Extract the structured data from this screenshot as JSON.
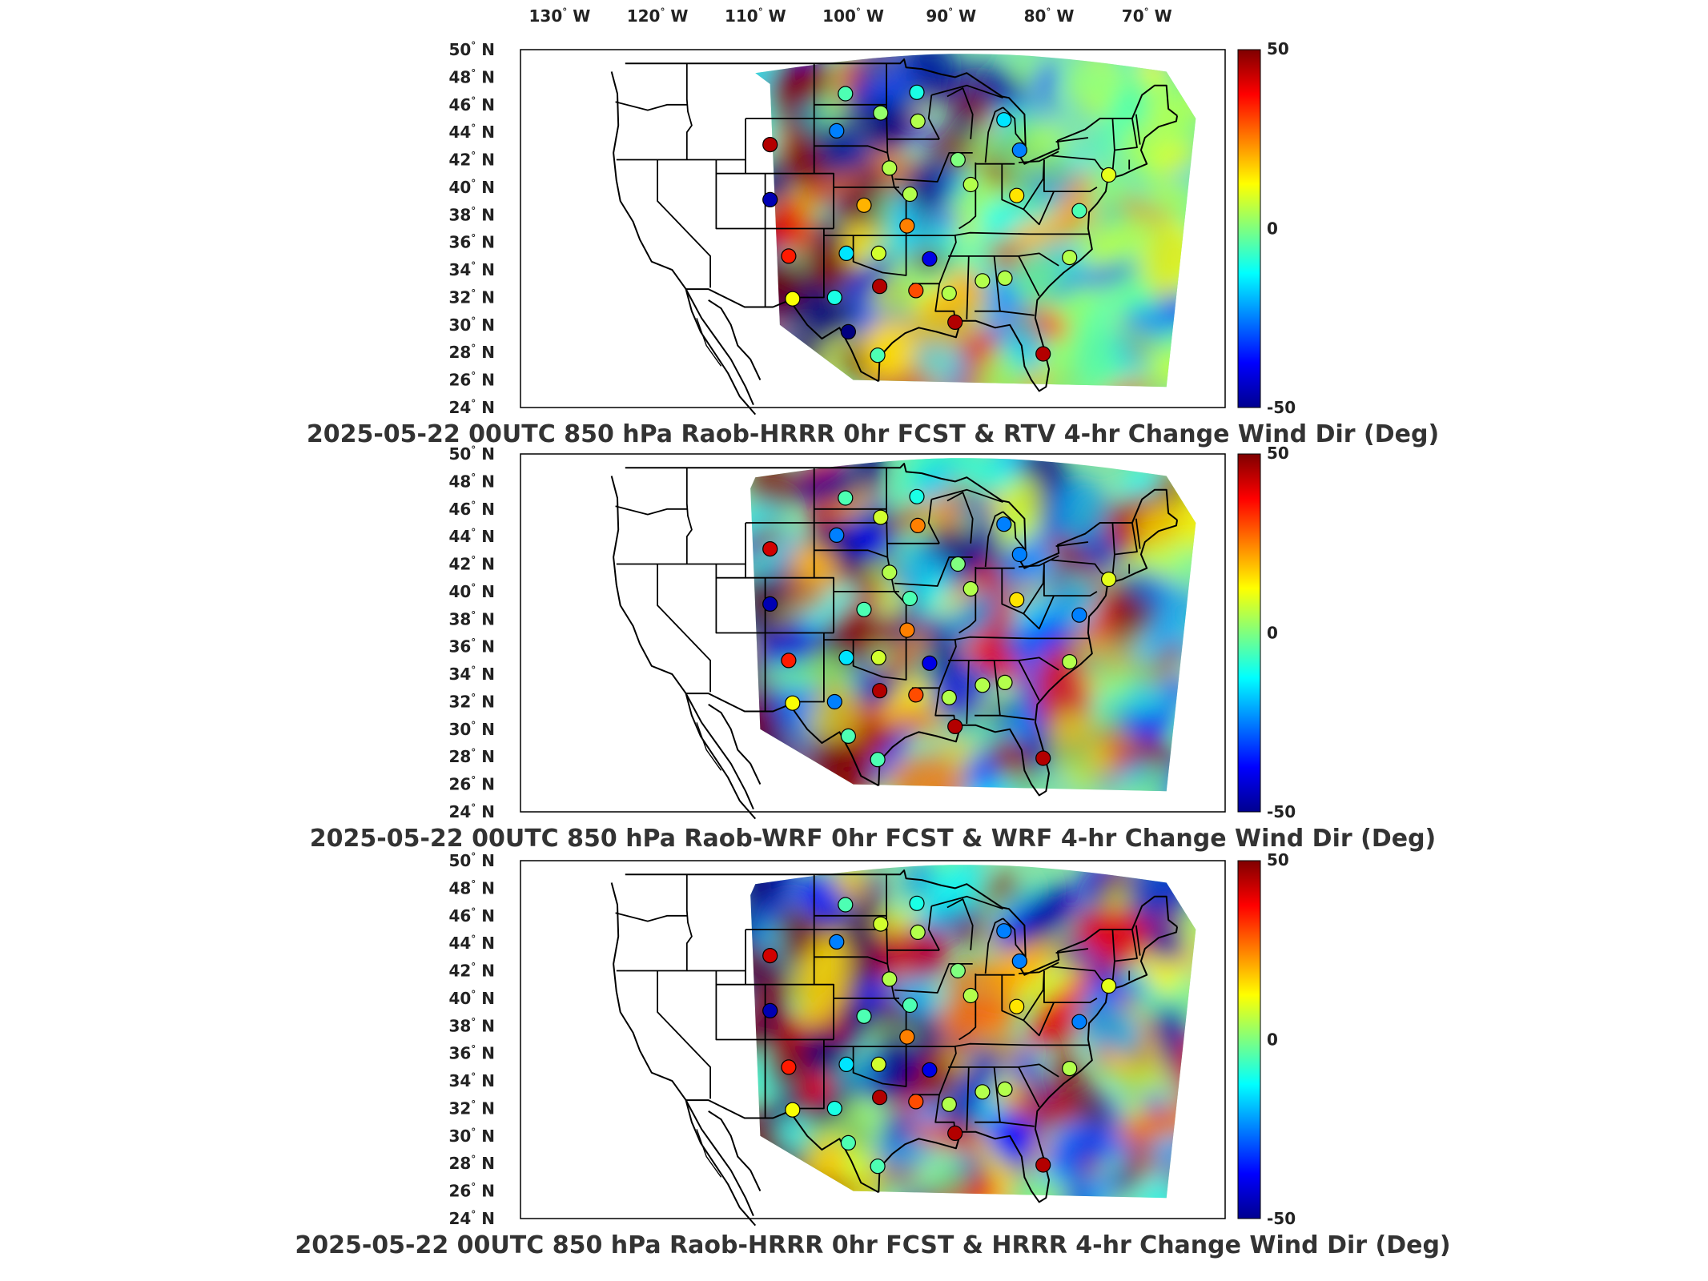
{
  "lon_ticks": [
    "130",
    "120",
    "110",
    "100",
    "90",
    "80",
    "70"
  ],
  "lon_suffix": "W",
  "lat_ticks": [
    "50",
    "48",
    "46",
    "44",
    "42",
    "40",
    "38",
    "36",
    "34",
    "32",
    "30",
    "28",
    "26",
    "24"
  ],
  "lat_suffix": "N",
  "colorbar": {
    "max_label": "50",
    "mid_label": "0",
    "min_label": "-50",
    "colormap": "jet"
  },
  "panels": [
    {
      "title": "2025-05-22 00UTC 850 hPa Raob-HRRR 0hr FCST & RTV 4-hr Change Wind Dir (Deg)"
    },
    {
      "title": "2025-05-22 00UTC 850 hPa Raob-WRF 0hr FCST & WRF 4-hr Change Wind Dir (Deg)"
    },
    {
      "title": "2025-05-22 00UTC 850 hPa Raob-HRRR 0hr FCST & HRRR 4-hr Change Wind Dir (Deg)"
    }
  ],
  "stations": [
    {
      "lon": -108.5,
      "lat": 43.1,
      "v": [
        45,
        42,
        42
      ]
    },
    {
      "lon": -108.5,
      "lat": 39.1,
      "v": [
        -45,
        -45,
        -45
      ]
    },
    {
      "lon": -106.6,
      "lat": 35.0,
      "v": [
        35,
        35,
        35
      ]
    },
    {
      "lon": -106.2,
      "lat": 31.9,
      "v": [
        12,
        12,
        12
      ]
    },
    {
      "lon": -100.8,
      "lat": 46.8,
      "v": [
        -5,
        -5,
        -5
      ]
    },
    {
      "lon": -101.7,
      "lat": 44.1,
      "v": [
        -25,
        -25,
        -25
      ]
    },
    {
      "lon": -97.2,
      "lat": 45.4,
      "v": [
        2,
        8,
        8
      ]
    },
    {
      "lon": -98.9,
      "lat": 38.7,
      "v": [
        20,
        -5,
        -5
      ]
    },
    {
      "lon": -100.7,
      "lat": 35.2,
      "v": [
        -15,
        -15,
        -15
      ]
    },
    {
      "lon": -97.4,
      "lat": 35.2,
      "v": [
        8,
        8,
        8
      ]
    },
    {
      "lon": -101.9,
      "lat": 32.0,
      "v": [
        -10,
        -25,
        -10
      ]
    },
    {
      "lon": -97.3,
      "lat": 32.8,
      "v": [
        45,
        45,
        45
      ]
    },
    {
      "lon": -100.5,
      "lat": 29.5,
      "v": [
        -50,
        -5,
        -5
      ]
    },
    {
      "lon": -97.5,
      "lat": 27.8,
      "v": [
        -5,
        -5,
        -5
      ]
    },
    {
      "lon": -93.5,
      "lat": 46.9,
      "v": [
        -10,
        -10,
        -10
      ]
    },
    {
      "lon": -93.4,
      "lat": 44.8,
      "v": [
        5,
        25,
        5
      ]
    },
    {
      "lon": -96.3,
      "lat": 41.4,
      "v": [
        5,
        5,
        5
      ]
    },
    {
      "lon": -94.2,
      "lat": 39.5,
      "v": [
        5,
        -5,
        -5
      ]
    },
    {
      "lon": -94.5,
      "lat": 37.2,
      "v": [
        25,
        25,
        25
      ]
    },
    {
      "lon": -93.6,
      "lat": 32.5,
      "v": [
        30,
        30,
        30
      ]
    },
    {
      "lon": -92.2,
      "lat": 34.8,
      "v": [
        -40,
        -40,
        -40
      ]
    },
    {
      "lon": -89.3,
      "lat": 42.0,
      "v": [
        0,
        0,
        0
      ]
    },
    {
      "lon": -88.0,
      "lat": 40.2,
      "v": [
        5,
        5,
        5
      ]
    },
    {
      "lon": -90.2,
      "lat": 32.3,
      "v": [
        5,
        5,
        5
      ]
    },
    {
      "lon": -89.6,
      "lat": 30.2,
      "v": [
        45,
        45,
        45
      ]
    },
    {
      "lon": -86.8,
      "lat": 33.2,
      "v": [
        5,
        5,
        5
      ]
    },
    {
      "lon": -84.5,
      "lat": 33.4,
      "v": [
        5,
        5,
        5
      ]
    },
    {
      "lon": -84.6,
      "lat": 44.9,
      "v": [
        -15,
        -25,
        -25
      ]
    },
    {
      "lon": -83.0,
      "lat": 42.7,
      "v": [
        -25,
        -25,
        -25
      ]
    },
    {
      "lon": -83.3,
      "lat": 39.4,
      "v": [
        15,
        15,
        15
      ]
    },
    {
      "lon": -80.6,
      "lat": 27.9,
      "v": [
        45,
        45,
        45
      ]
    },
    {
      "lon": -77.9,
      "lat": 34.9,
      "v": [
        5,
        5,
        5
      ]
    },
    {
      "lon": -76.9,
      "lat": 38.3,
      "v": [
        -5,
        -25,
        -25
      ]
    },
    {
      "lon": -73.9,
      "lat": 40.9,
      "v": [
        10,
        10,
        10
      ]
    }
  ]
}
